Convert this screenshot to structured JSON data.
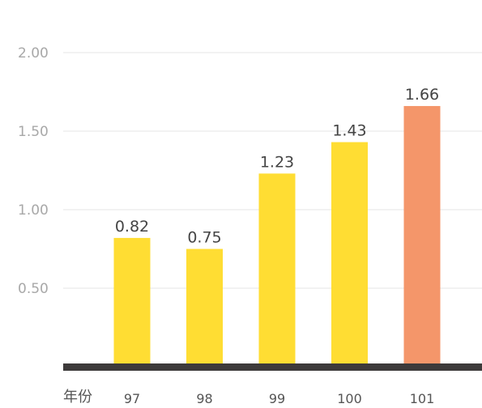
{
  "chart_data": {
    "type": "bar",
    "x_axis_label": "年份",
    "categories": [
      "97",
      "98",
      "99",
      "100",
      "101"
    ],
    "values": [
      0.82,
      0.75,
      1.23,
      1.43,
      1.66
    ],
    "value_labels": [
      "0.82",
      "0.75",
      "1.23",
      "1.43",
      "1.66"
    ],
    "y_ticks": [
      {
        "value": 0.5,
        "label": "0.50"
      },
      {
        "value": 1.0,
        "label": "1.00"
      },
      {
        "value": 1.5,
        "label": "1.50"
      },
      {
        "value": 2.0,
        "label": "2.00"
      }
    ],
    "ylim": [
      0,
      2.0
    ],
    "grid": true,
    "legend": "none",
    "colors": {
      "bar": "#FFDD33",
      "highlight_bar": "#F4966A",
      "baseline": "#3d3a3a",
      "grid": "#e5e5e5",
      "tick_text": "#a8a8a8",
      "value_text": "#444444",
      "category_text": "#555555"
    },
    "highlight_index": 4
  }
}
